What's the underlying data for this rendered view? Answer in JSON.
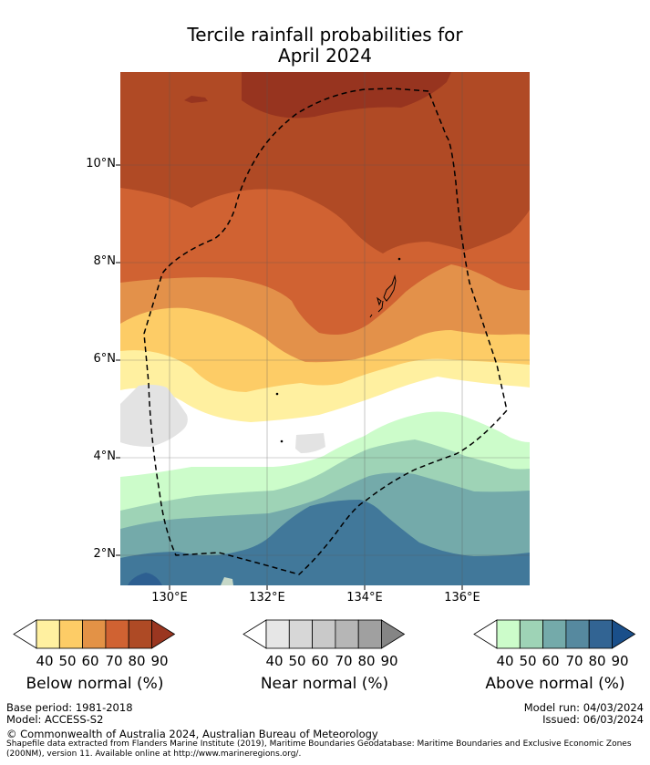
{
  "title": {
    "line1": "Tercile rainfall probabilities for",
    "line2": "April 2024"
  },
  "map": {
    "lat_labels": [
      "10°N",
      "8°N",
      "6°N",
      "4°N",
      "2°N"
    ],
    "lon_labels": [
      "130°E",
      "132°E",
      "134°E",
      "136°E"
    ],
    "boundary": "Exclusive Economic Zone (dashed)"
  },
  "legend": {
    "below": {
      "label": "Below normal (%)",
      "ticks": [
        "40",
        "50",
        "60",
        "70",
        "80",
        "90"
      ],
      "colors": [
        "#fff0a0",
        "#fdcc66",
        "#e39246",
        "#d06232",
        "#ae4a25",
        "#9a3620"
      ]
    },
    "near": {
      "label": "Near normal (%)",
      "ticks": [
        "40",
        "50",
        "60",
        "70",
        "80",
        "90"
      ],
      "colors": [
        "#e6e6e6",
        "#d7d7d7",
        "#c9c9c9",
        "#b6b6b6",
        "#a0a0a0",
        "#858585"
      ]
    },
    "above": {
      "label": "Above normal (%)",
      "ticks": [
        "40",
        "50",
        "60",
        "70",
        "80",
        "90"
      ],
      "colors": [
        "#ccfcca",
        "#9ed3b6",
        "#74aaaa",
        "#56899f",
        "#326493",
        "#1a4f8a"
      ]
    }
  },
  "footer": {
    "base_period": "Base period: 1981-2018",
    "model": "Model: ACCESS-S2",
    "model_run": "Model run: 04/03/2024",
    "issued": "Issued: 06/03/2024",
    "copyright": "© Commonwealth of Australia 2024, Australian Bureau of Meteorology",
    "shapefile1": "Shapefile data extracted from Flanders Marine Institute (2019), Maritime Boundaries Geodatabase: Maritime Boundaries and Exclusive Economic Zones",
    "shapefile2": "(200NM), version 11. Available online at http://www.marineregions.org/."
  }
}
